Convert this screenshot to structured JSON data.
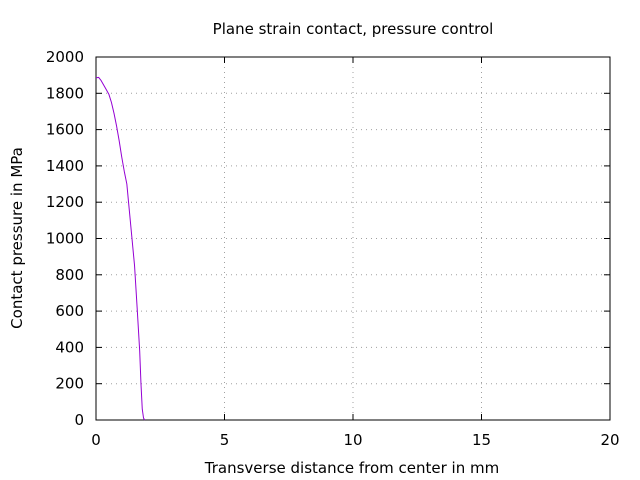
{
  "chart_data": {
    "type": "line",
    "title": "Plane strain contact, pressure control",
    "xlabel": "Transverse distance from center in mm",
    "ylabel": "Contact pressure in MPa",
    "xlim": [
      0,
      20
    ],
    "ylim": [
      0,
      2000
    ],
    "x_ticks": [
      "0",
      "5",
      "10",
      "15",
      "20"
    ],
    "y_ticks": [
      "0",
      "200",
      "400",
      "600",
      "800",
      "1000",
      "1200",
      "1400",
      "1600",
      "1800",
      "2000"
    ],
    "grid": true,
    "series": [
      {
        "color": "#9400d3",
        "x": [
          0.0,
          0.1,
          0.2,
          0.3,
          0.4,
          0.5,
          0.6,
          0.7,
          0.8,
          0.9,
          1.0,
          1.1,
          1.2,
          1.3,
          1.4,
          1.5,
          1.6,
          1.7,
          1.75,
          1.8,
          1.85,
          1.9
        ],
        "y": [
          1885,
          1888,
          1870,
          1845,
          1820,
          1795,
          1750,
          1690,
          1620,
          1540,
          1450,
          1370,
          1300,
          1150,
          1000,
          850,
          620,
          380,
          200,
          60,
          10,
          0
        ]
      }
    ]
  }
}
